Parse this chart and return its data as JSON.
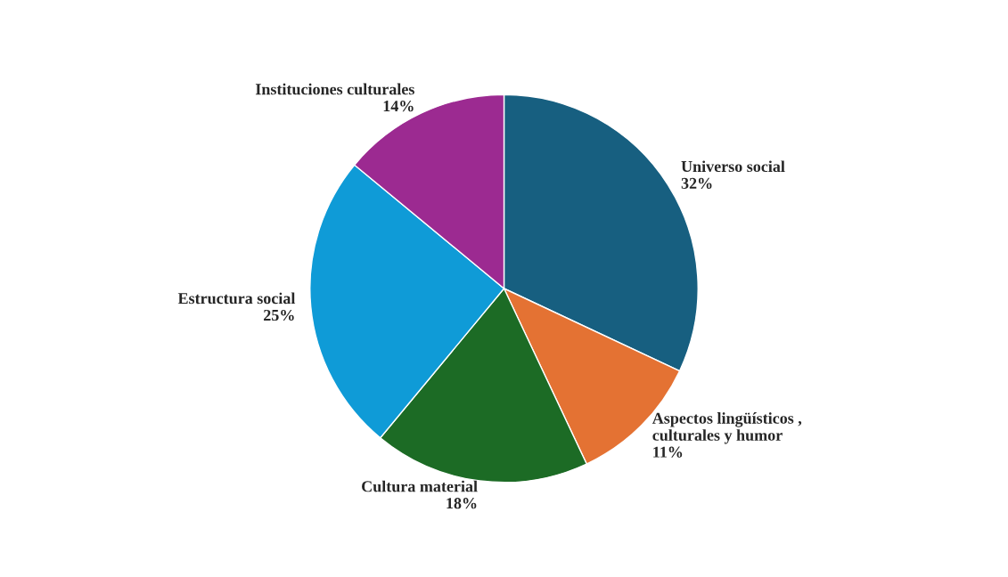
{
  "chart_data": {
    "type": "pie",
    "categories": [
      "Universo social",
      "Aspectos lingüísticos ,\nculturales y humor",
      "Cultura material",
      "Estructura social",
      "Instituciones culturales"
    ],
    "values": [
      32,
      11,
      18,
      25,
      14
    ],
    "value_labels": [
      "32%",
      "11%",
      "18%",
      "25%",
      "14%"
    ],
    "colors": [
      "#175f80",
      "#e47233",
      "#1c6b25",
      "#0f9bd7",
      "#9c2a91"
    ],
    "legend": false
  }
}
